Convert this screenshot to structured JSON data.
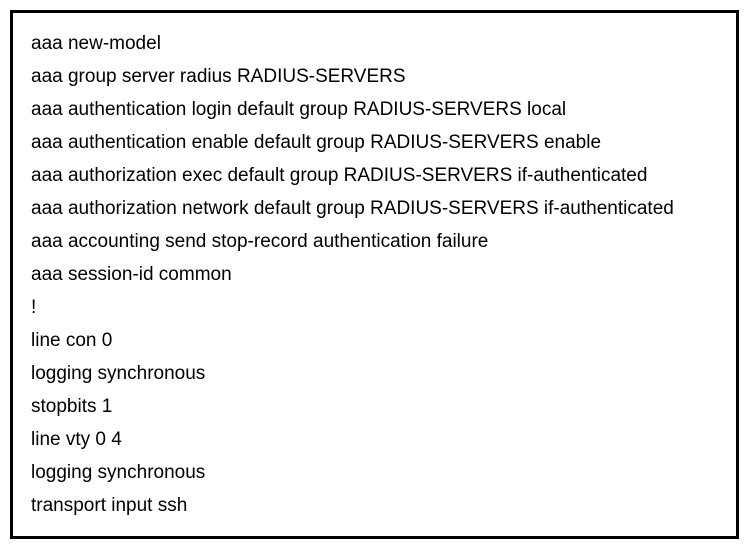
{
  "config": {
    "border_color": "#000000",
    "background_color": "#ffffff",
    "text_color": "#000000",
    "font_size": 19,
    "line_height": 33,
    "font_family": "Segoe UI",
    "lines": [
      "aaa new-model",
      "aaa group server radius RADIUS-SERVERS",
      "aaa authentication login default group RADIUS-SERVERS local",
      "aaa authentication enable default group RADIUS-SERVERS enable",
      "aaa authorization exec default group RADIUS-SERVERS if-authenticated",
      "aaa authorization network default group RADIUS-SERVERS if-authenticated",
      "aaa accounting send stop-record authentication failure",
      "aaa session-id common",
      "!",
      "line con 0",
      "logging synchronous",
      "stopbits 1",
      "line vty 0 4",
      "logging synchronous",
      "transport input ssh"
    ]
  }
}
